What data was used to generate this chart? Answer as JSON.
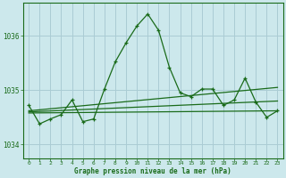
{
  "title": "Graphe pression niveau de la mer (hPa)",
  "bg_color": "#cce8ec",
  "grid_color": "#aaccd4",
  "line_color": "#1a6b1a",
  "xlim": [
    -0.5,
    23.5
  ],
  "ylim": [
    1033.75,
    1036.6
  ],
  "yticks": [
    1034,
    1035,
    1036
  ],
  "xticks": [
    0,
    1,
    2,
    3,
    4,
    5,
    6,
    7,
    8,
    9,
    10,
    11,
    12,
    13,
    14,
    15,
    16,
    17,
    18,
    19,
    20,
    21,
    22,
    23
  ],
  "series1_x": [
    0,
    1,
    2,
    3,
    4,
    5,
    6,
    7,
    8,
    9,
    10,
    11,
    12,
    13,
    14,
    15,
    16,
    17,
    18,
    19,
    20,
    21,
    22,
    23
  ],
  "series1_y": [
    1034.72,
    1034.38,
    1034.47,
    1034.55,
    1034.82,
    1034.42,
    1034.47,
    1035.02,
    1035.52,
    1035.87,
    1036.18,
    1036.4,
    1036.1,
    1035.42,
    1034.95,
    1034.88,
    1035.02,
    1035.02,
    1034.72,
    1034.82,
    1035.22,
    1034.78,
    1034.5,
    1034.62
  ],
  "line2_x": [
    0,
    23
  ],
  "line2_y": [
    1034.58,
    1034.62
  ],
  "line3_x": [
    0,
    23
  ],
  "line3_y": [
    1034.6,
    1034.8
  ],
  "line4_x": [
    0,
    23
  ],
  "line4_y": [
    1034.62,
    1035.05
  ]
}
